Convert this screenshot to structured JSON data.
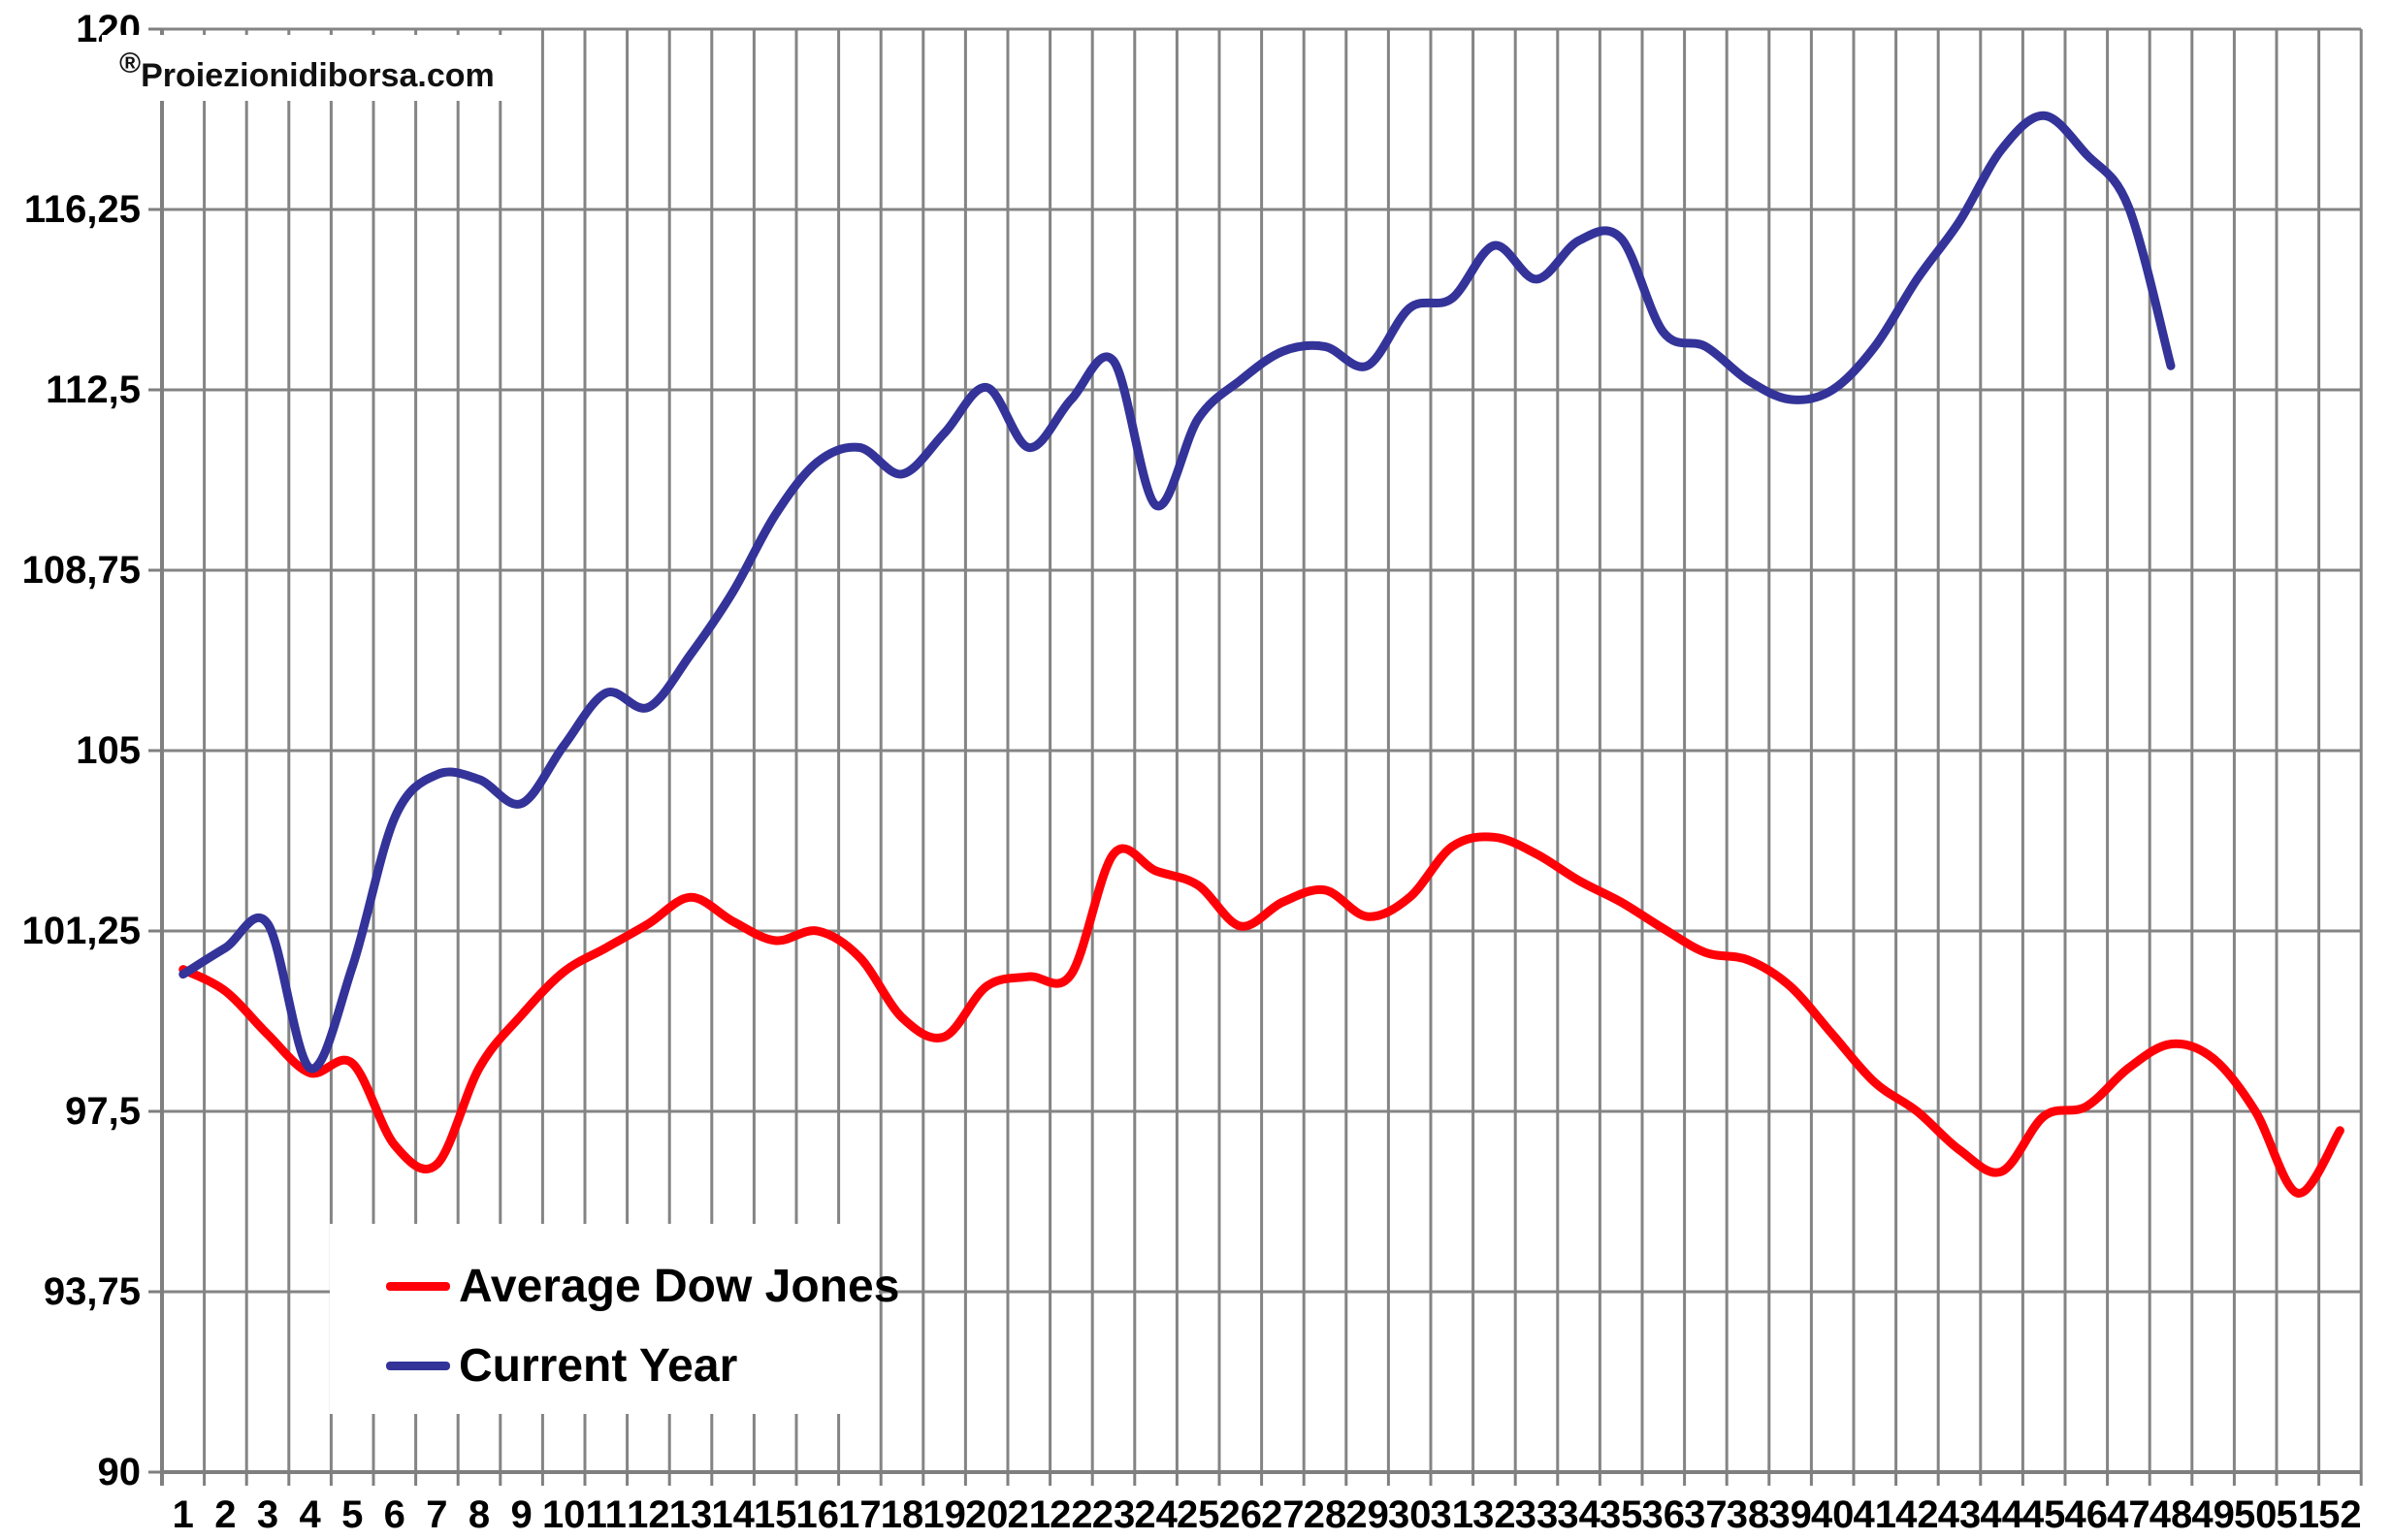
{
  "watermark": {
    "registered": "®",
    "text": "Proiezionidiborsa.com"
  },
  "legend": {
    "items": [
      {
        "label": "Average Dow Jones",
        "color": "#ff0008"
      },
      {
        "label": "Current Year",
        "color": "#333399"
      }
    ]
  },
  "chart_data": {
    "type": "line",
    "title": "",
    "xlabel": "",
    "ylabel": "",
    "ylim": [
      90,
      120
    ],
    "y_tick_values": [
      120,
      116.25,
      112.5,
      108.75,
      105,
      101.25,
      97.5,
      93.75,
      90
    ],
    "y_tick_labels": [
      "120",
      "116,25",
      "112,5",
      "108,75",
      "105",
      "101,25",
      "97,5",
      "93,75",
      "90"
    ],
    "x_tick_labels": [
      "1",
      "2",
      "3",
      "4",
      "5",
      "6",
      "7",
      "8",
      "9",
      "10",
      "11",
      "12",
      "13",
      "14",
      "15",
      "16",
      "17",
      "18",
      "19",
      "20",
      "21",
      "22",
      "23",
      "24",
      "25",
      "26",
      "27",
      "28",
      "29",
      "30",
      "31",
      "32",
      "33",
      "34",
      "35",
      "36",
      "37",
      "38",
      "39",
      "40",
      "41",
      "42",
      "43",
      "44",
      "45",
      "46",
      "47",
      "48",
      "49",
      "50",
      "51",
      "52"
    ],
    "grid": true,
    "grid_color": "#848484",
    "axis_color": "#7f7f7f",
    "legend_position": "inside-bottom-left",
    "smoothed_lines": true,
    "series": [
      {
        "name": "Average Dow Jones",
        "color": "#ff0008",
        "x_start": 1,
        "values": [
          100.45,
          100.0,
          99.1,
          98.3,
          98.5,
          96.8,
          96.4,
          98.4,
          99.5,
          100.4,
          100.9,
          101.4,
          101.95,
          101.45,
          101.05,
          101.25,
          100.7,
          99.45,
          99.05,
          100.1,
          100.3,
          100.35,
          102.85,
          102.5,
          102.2,
          101.35,
          101.85,
          102.1,
          101.55,
          101.95,
          103.0,
          103.2,
          102.85,
          102.3,
          101.85,
          101.3,
          100.8,
          100.65,
          100.1,
          99.1,
          98.1,
          97.5,
          96.7,
          96.25,
          97.4,
          97.6,
          98.4,
          98.9,
          98.6,
          97.5,
          95.8,
          97.1
        ]
      },
      {
        "name": "Current Year",
        "color": "#333399",
        "x_start": 1,
        "values": [
          100.35,
          100.9,
          101.4,
          98.4,
          100.5,
          103.6,
          104.5,
          104.4,
          103.9,
          105.1,
          106.2,
          105.9,
          107.0,
          108.3,
          109.9,
          111.0,
          111.3,
          110.75,
          111.6,
          112.55,
          111.3,
          112.3,
          113.1,
          110.1,
          111.9,
          112.7,
          113.3,
          113.4,
          113.0,
          114.2,
          114.4,
          115.5,
          114.8,
          115.6,
          115.65,
          113.7,
          113.4,
          112.7,
          112.3,
          112.5,
          113.4,
          114.8,
          116.0,
          117.5,
          118.2,
          117.4,
          116.3,
          113.0
        ]
      }
    ]
  }
}
